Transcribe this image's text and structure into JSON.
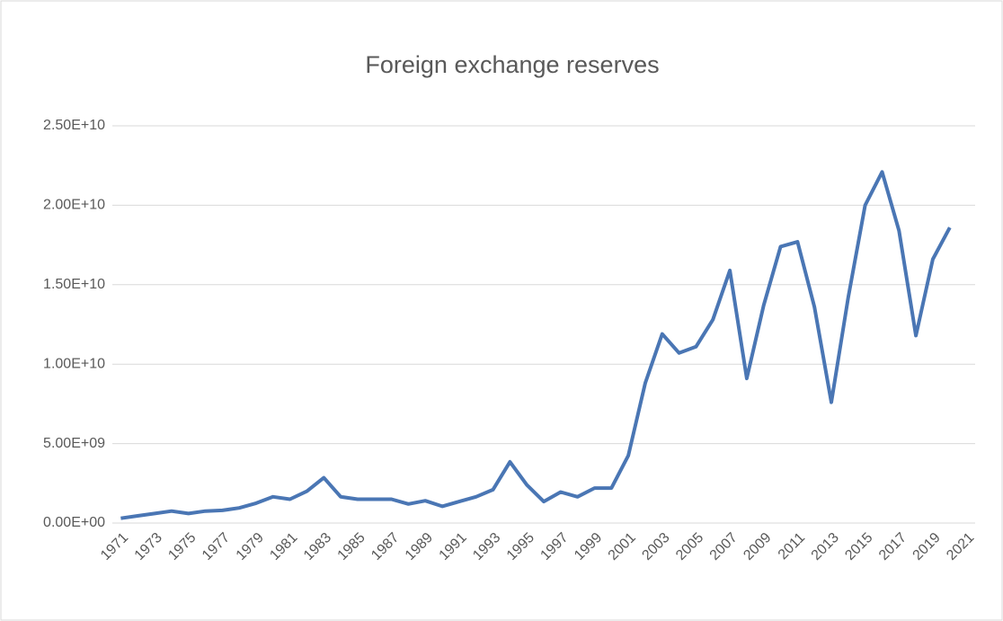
{
  "chart_data": {
    "type": "line",
    "title": "Foreign exchange reserves",
    "categories": [
      "1971",
      null,
      "1973",
      null,
      "1975",
      null,
      "1977",
      null,
      "1979",
      null,
      "1981",
      null,
      "1983",
      null,
      "1985",
      null,
      "1987",
      null,
      "1989",
      null,
      "1991",
      null,
      "1993",
      null,
      "1995",
      null,
      "1997",
      null,
      "1999",
      null,
      "2001",
      null,
      "2003",
      null,
      "2005",
      null,
      "2007",
      null,
      "2009",
      null,
      "2011",
      null,
      "2013",
      null,
      "2015",
      null,
      "2017",
      null,
      "2019",
      null,
      "2021"
    ],
    "series": [
      {
        "name": "Foreign exchange reserves",
        "color": "#4a76b4",
        "values": [
          300000000,
          450000000,
          600000000,
          750000000,
          600000000,
          750000000,
          800000000,
          950000000,
          1250000000,
          1650000000,
          1500000000,
          2000000000,
          2850000000,
          1650000000,
          1500000000,
          1500000000,
          1500000000,
          1200000000,
          1400000000,
          1050000000,
          1350000000,
          1650000000,
          2100000000,
          3850000000,
          2400000000,
          1350000000,
          1950000000,
          1650000000,
          2200000000,
          2200000000,
          4250000000,
          8800000000,
          11900000000,
          10700000000,
          11100000000,
          12800000000,
          15900000000,
          9100000000,
          13700000000,
          17400000000,
          17700000000,
          13600000000,
          7600000000,
          14200000000,
          20000000000,
          22100000000,
          18400000000,
          11800000000,
          16600000000,
          18600000000,
          null
        ]
      }
    ],
    "ylim": [
      0,
      25000000000
    ],
    "yticks": [
      {
        "value": 0,
        "label": "0.00E+00"
      },
      {
        "value": 5000000000,
        "label": "5.00E+09"
      },
      {
        "value": 10000000000,
        "label": "1.00E+10"
      },
      {
        "value": 15000000000,
        "label": "1.50E+10"
      },
      {
        "value": 20000000000,
        "label": "2.00E+10"
      },
      {
        "value": 25000000000,
        "label": "2.50E+10"
      }
    ],
    "grid": true
  }
}
